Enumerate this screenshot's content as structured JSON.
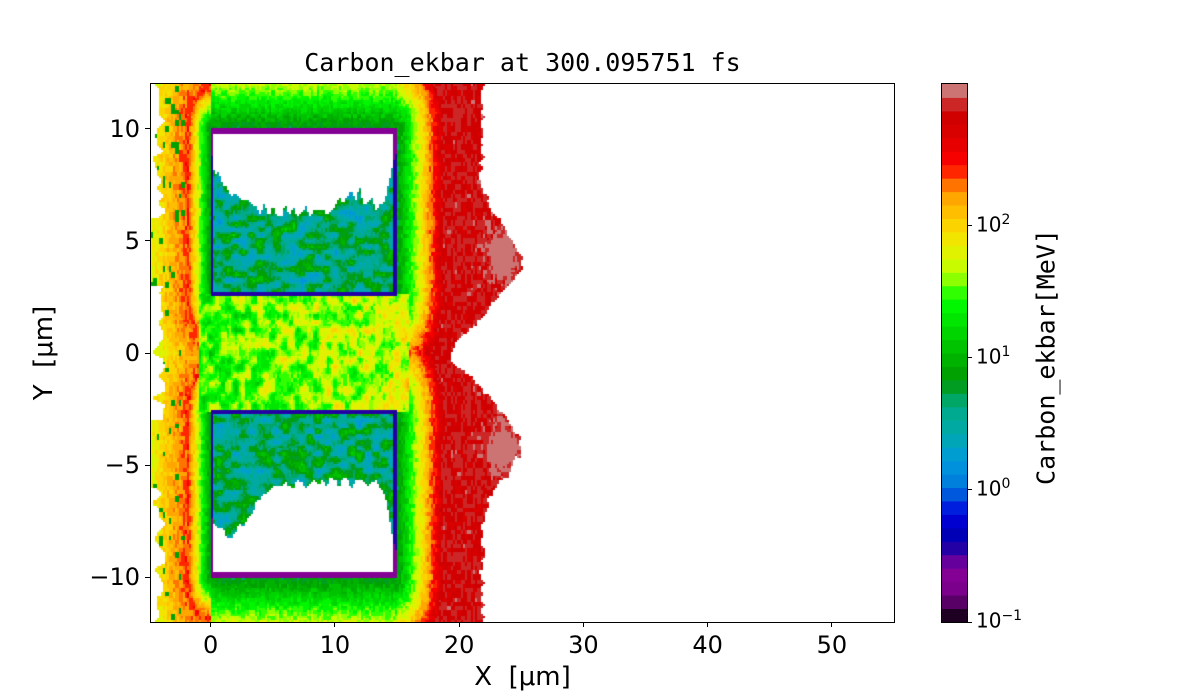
{
  "chart_data": {
    "type": "heatmap",
    "title": "Carbon_ekbar at 300.095751 fs",
    "xlabel": "X  [μm]",
    "ylabel": "Y  [μm]",
    "xlim": [
      -4.8,
      55
    ],
    "ylim": [
      -12,
      12
    ],
    "xticks": [
      0,
      10,
      20,
      30,
      40,
      50
    ],
    "yticks": [
      10,
      5,
      0,
      -5,
      -10
    ],
    "xtick_labels": [
      "0",
      "10",
      "20",
      "30",
      "40",
      "50"
    ],
    "ytick_labels": [
      "10",
      "5",
      "0",
      "−5",
      "−10"
    ],
    "grid": false,
    "colorbar": {
      "label": "Carbon_ekbar[MeV]",
      "scale": "log",
      "range": [
        0.1,
        1180
      ],
      "levels": 40,
      "colormap": "nipy_spectral",
      "ticks": [
        0.1,
        1,
        10,
        100
      ],
      "tick_labels": [
        {
          "base": "10",
          "exp": "−1"
        },
        {
          "base": "10",
          "exp": "0"
        },
        {
          "base": "10",
          "exp": "1"
        },
        {
          "base": "10",
          "exp": "2"
        }
      ]
    },
    "features": {
      "targets": [
        {
          "x": [
            0,
            15
          ],
          "y": [
            2.5,
            10
          ]
        },
        {
          "x": [
            0,
            15
          ],
          "y": [
            -10,
            -2.5
          ]
        }
      ],
      "max_extent_x": 25,
      "peak_energy_region": "x≈22–25, y≈±4"
    }
  }
}
